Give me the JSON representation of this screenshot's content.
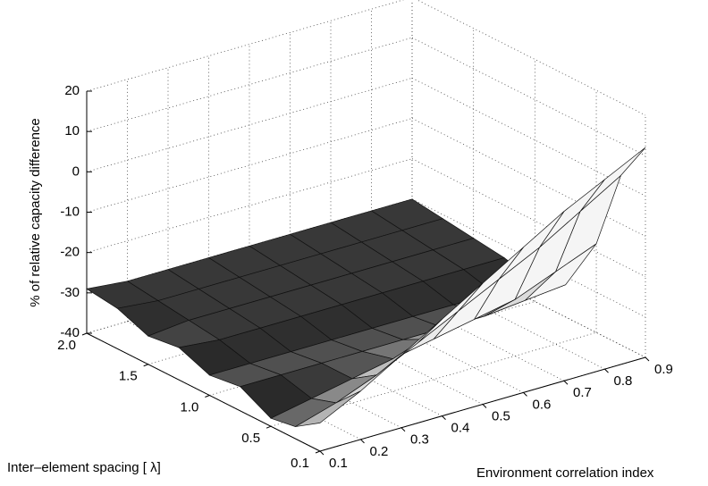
{
  "chart_data": {
    "type": "surface",
    "xlabel": "Environment correlation index",
    "ylabel": "Inter–element spacing [ λ]",
    "zlabel": "% of relative capacity difference",
    "x": [
      0.1,
      0.2,
      0.3,
      0.4,
      0.5,
      0.6,
      0.7,
      0.8,
      0.9
    ],
    "y": [
      0.1,
      0.3,
      0.5,
      0.75,
      1.0,
      1.25,
      1.5,
      1.75,
      2.0
    ],
    "z": [
      [
        -33,
        -28,
        -22,
        -16,
        -10,
        -4,
        2,
        7,
        12
      ],
      [
        -37,
        -34,
        -30,
        -25,
        -20,
        -15,
        -10,
        -4,
        2
      ],
      [
        -38,
        -36,
        -34,
        -32,
        -30,
        -28,
        -26,
        -22,
        -18
      ],
      [
        -34,
        -34,
        -34,
        -34,
        -34,
        -34,
        -34,
        -33,
        -32
      ],
      [
        -35,
        -35,
        -35,
        -35,
        -35,
        -35,
        -35,
        -35,
        -35
      ],
      [
        -32,
        -33,
        -33,
        -33,
        -33,
        -33,
        -33,
        -33,
        -33
      ],
      [
        -33,
        -32,
        -32,
        -32,
        -32,
        -32,
        -32,
        -32,
        -32
      ],
      [
        -30,
        -31,
        -31,
        -31,
        -31,
        -31,
        -31,
        -31,
        -31
      ],
      [
        -29,
        -30,
        -30,
        -30,
        -30,
        -30,
        -30,
        -30,
        -30
      ]
    ],
    "xlim": [
      0.1,
      0.9
    ],
    "ylim": [
      0.1,
      2.0
    ],
    "zlim": [
      -40,
      20
    ],
    "xticks": [
      0.1,
      0.2,
      0.3,
      0.4,
      0.5,
      0.6,
      0.7,
      0.8,
      0.9
    ],
    "yticks": [
      0.1,
      0.5,
      {
        "value": 1,
        "label": "1.0"
      },
      1.5,
      {
        "value": 2,
        "label": "2.0"
      }
    ],
    "zticks": [
      -40,
      -30,
      -20,
      -10,
      0,
      10,
      20
    ],
    "grid": true
  }
}
